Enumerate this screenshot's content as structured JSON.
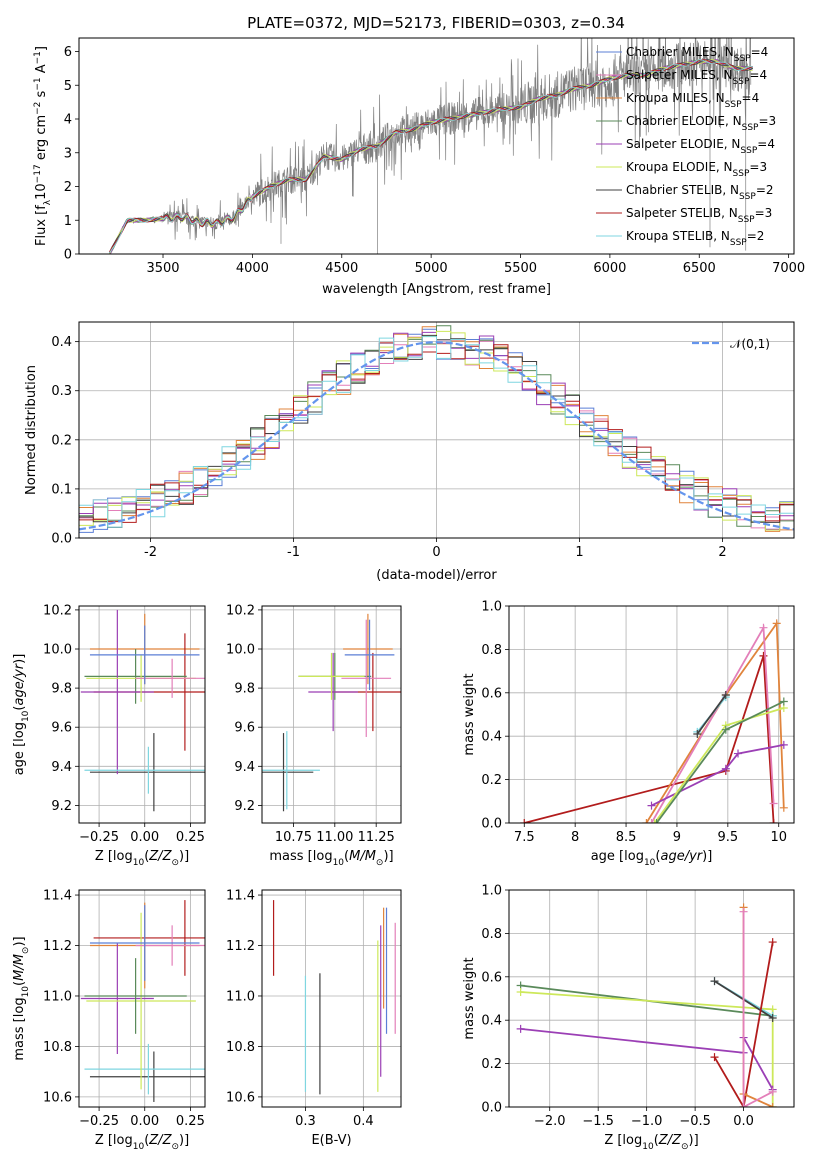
{
  "figure": {
    "title": "PLATE=0372, MJD=52173, FIBERID=0303, z=0.34"
  },
  "models": [
    {
      "name": "Chabrier MILES",
      "nssp": "4",
      "color": "#5b7fd6"
    },
    {
      "name": "Salpeter MILES",
      "nssp": "4",
      "color": "#e37fb9"
    },
    {
      "name": "Kroupa MILES",
      "nssp": "4",
      "color": "#e0843c"
    },
    {
      "name": "Chabrier ELODIE",
      "nssp": "3",
      "color": "#5a8a5a"
    },
    {
      "name": "Salpeter ELODIE",
      "nssp": "4",
      "color": "#9b3fb5"
    },
    {
      "name": "Kroupa ELODIE",
      "nssp": "3",
      "color": "#cde85a"
    },
    {
      "name": "Chabrier STELIB",
      "nssp": "2",
      "color": "#404040"
    },
    {
      "name": "Salpeter STELIB",
      "nssp": "3",
      "color": "#b21c1c"
    },
    {
      "name": "Kroupa STELIB",
      "nssp": "2",
      "color": "#7fd6e0"
    }
  ],
  "chart_data": [
    {
      "id": "spectrum",
      "type": "line",
      "xlabel": "wavelength [Angstrom, rest frame]",
      "ylabel": "Flux [f_λ 10^-17 erg cm^-2 s^-1 A^-1]",
      "xlim": [
        3030,
        7030
      ],
      "ylim": [
        0,
        6.4
      ],
      "xticks": [
        3500,
        4000,
        4500,
        5000,
        5500,
        6000,
        6500,
        7000
      ],
      "yticks": [
        0,
        1,
        2,
        3,
        4,
        5,
        6
      ],
      "data_color": "#808080",
      "model_x": [
        3200,
        3300,
        3400,
        3500,
        3600,
        3700,
        3800,
        3900,
        4000,
        4100,
        4200,
        4300,
        4400,
        4500,
        4600,
        4700,
        4800,
        4900,
        5000,
        5100,
        5200,
        5300,
        5400,
        5500,
        5600,
        5700,
        5800,
        5900,
        6000,
        6100,
        6200,
        6300,
        6400,
        6500,
        6600,
        6700,
        6800
      ],
      "model_y": [
        0.0,
        1.0,
        1.0,
        1.05,
        1.1,
        0.95,
        0.9,
        1.1,
        1.7,
        2.0,
        2.2,
        2.2,
        2.9,
        2.8,
        3.1,
        3.2,
        3.6,
        3.7,
        3.9,
        4.0,
        4.1,
        4.2,
        4.3,
        4.35,
        4.6,
        4.7,
        4.9,
        5.0,
        5.2,
        5.3,
        5.3,
        5.5,
        5.6,
        5.7,
        5.7,
        5.5,
        5.5
      ]
    },
    {
      "id": "residuals",
      "type": "histogram",
      "xlabel": "(data-model)/error",
      "ylabel": "Normed distribution",
      "xlim": [
        -2.5,
        2.5
      ],
      "ylim": [
        0,
        0.44
      ],
      "xticks": [
        -2,
        -1,
        0,
        1,
        2
      ],
      "yticks": [
        0.0,
        0.1,
        0.2,
        0.3,
        0.4
      ],
      "bins": 50,
      "reference_label": "𝒩(0,1)",
      "reference_color": "#6495ED"
    },
    {
      "id": "age-vs-Z",
      "type": "errorbar",
      "xlabel": "Z [log10(Z/Z☉)]",
      "ylabel": "age  [log10(age/yr)]",
      "xlim": [
        -0.36,
        0.33
      ],
      "ylim": [
        9.11,
        10.22
      ],
      "xticks": [
        -0.25,
        0.0,
        0.25
      ],
      "xticklabels": [
        "−0.25",
        "0.00",
        "0.25"
      ],
      "yticks": [
        9.2,
        9.4,
        9.6,
        9.8,
        10.0,
        10.2
      ],
      "points": [
        {
          "x": 0.0,
          "y": 10.0,
          "xerr": 0.3,
          "yerr": 0.18,
          "model": 2
        },
        {
          "x": 0.22,
          "y": 9.78,
          "xerr": 0.5,
          "yerr": 0.3,
          "model": 7
        },
        {
          "x": 0.05,
          "y": 9.37,
          "xerr": 0.35,
          "yerr": 0.2,
          "model": 6
        },
        {
          "x": -0.05,
          "y": 9.86,
          "xerr": 0.28,
          "yerr": 0.14,
          "model": 3
        },
        {
          "x": -0.15,
          "y": 9.78,
          "xerr": 0.2,
          "yerr": 0.42,
          "model": 4
        },
        {
          "x": -0.02,
          "y": 9.85,
          "xerr": 0.3,
          "yerr": 0.12,
          "model": 5
        },
        {
          "x": 0.02,
          "y": 9.38,
          "xerr": 0.35,
          "yerr": 0.12,
          "model": 8
        },
        {
          "x": 0.15,
          "y": 9.85,
          "xerr": 0.2,
          "yerr": 0.1,
          "model": 1
        },
        {
          "x": 0.0,
          "y": 9.97,
          "xerr": 0.3,
          "yerr": 0.15,
          "model": 0
        }
      ]
    },
    {
      "id": "age-vs-mass",
      "type": "errorbar",
      "xlabel": "mass [log10(M/M☉)]",
      "ylabel": "",
      "xlim": [
        10.56,
        11.4
      ],
      "ylim": [
        9.11,
        10.22
      ],
      "xticks": [
        10.75,
        11.0,
        11.25
      ],
      "xticklabels": [
        "10.75",
        "11.00",
        "11.25"
      ],
      "yticks": [
        9.2,
        9.4,
        9.6,
        9.8,
        10.0,
        10.2
      ],
      "points": [
        {
          "x": 11.2,
          "y": 10.0,
          "xerr": 0.15,
          "yerr": 0.18,
          "model": 2
        },
        {
          "x": 11.23,
          "y": 9.78,
          "xerr": 0.25,
          "yerr": 0.2,
          "model": 7
        },
        {
          "x": 10.69,
          "y": 9.37,
          "xerr": 0.18,
          "yerr": 0.2,
          "model": 6
        },
        {
          "x": 11.0,
          "y": 9.86,
          "xerr": 0.22,
          "yerr": 0.12,
          "model": 3
        },
        {
          "x": 10.99,
          "y": 9.78,
          "xerr": 0.15,
          "yerr": 0.2,
          "model": 4
        },
        {
          "x": 10.98,
          "y": 9.86,
          "xerr": 0.2,
          "yerr": 0.12,
          "model": 5
        },
        {
          "x": 10.71,
          "y": 9.38,
          "xerr": 0.2,
          "yerr": 0.2,
          "model": 8
        },
        {
          "x": 11.19,
          "y": 9.85,
          "xerr": 0.15,
          "yerr": 0.3,
          "model": 1
        },
        {
          "x": 11.21,
          "y": 9.97,
          "xerr": 0.15,
          "yerr": 0.18,
          "model": 0
        }
      ]
    },
    {
      "id": "massweight-vs-age",
      "type": "line",
      "xlabel": "age  [log10(age/yr)]",
      "ylabel": "mass weight",
      "xlim": [
        7.35,
        10.15
      ],
      "ylim": [
        0,
        1.0
      ],
      "xticks": [
        7.5,
        8.0,
        8.5,
        9.0,
        9.5,
        10.0
      ],
      "yticks": [
        0.0,
        0.2,
        0.4,
        0.6,
        0.8,
        1.0
      ],
      "series": [
        {
          "model": 7,
          "points": [
            [
              7.5,
              0.0
            ],
            [
              9.48,
              0.24
            ],
            [
              9.85,
              0.77
            ],
            [
              9.95,
              0.0
            ]
          ]
        },
        {
          "model": 2,
          "points": [
            [
              8.7,
              0.0
            ],
            [
              9.48,
              0.59
            ],
            [
              9.98,
              0.92
            ],
            [
              10.05,
              0.07
            ]
          ]
        },
        {
          "model": 1,
          "points": [
            [
              8.75,
              0.0
            ],
            [
              9.85,
              0.9
            ],
            [
              9.95,
              0.09
            ]
          ]
        },
        {
          "model": 4,
          "points": [
            [
              8.75,
              0.08
            ],
            [
              9.48,
              0.25
            ],
            [
              9.6,
              0.32
            ],
            [
              10.05,
              0.36
            ]
          ]
        },
        {
          "model": 5,
          "points": [
            [
              8.78,
              0.0
            ],
            [
              9.48,
              0.45
            ],
            [
              10.05,
              0.53
            ]
          ]
        },
        {
          "model": 3,
          "points": [
            [
              8.8,
              0.0
            ],
            [
              9.48,
              0.43
            ],
            [
              10.05,
              0.56
            ]
          ]
        },
        {
          "model": 8,
          "points": [
            [
              9.2,
              0.42
            ],
            [
              9.48,
              0.58
            ]
          ]
        },
        {
          "model": 6,
          "points": [
            [
              9.2,
              0.41
            ],
            [
              9.48,
              0.59
            ]
          ]
        }
      ]
    },
    {
      "id": "mass-vs-Z",
      "type": "errorbar",
      "xlabel": "Z [log10(Z/Z☉)]",
      "ylabel": "mass [log10(M/M☉)]",
      "xlim": [
        -0.36,
        0.33
      ],
      "ylim": [
        10.56,
        11.42
      ],
      "xticks": [
        -0.25,
        0.0,
        0.25
      ],
      "xticklabels": [
        "−0.25",
        "0.00",
        "0.25"
      ],
      "yticks": [
        10.6,
        10.8,
        11.0,
        11.2,
        11.4
      ],
      "points": [
        {
          "x": 0.22,
          "y": 11.23,
          "xerr": 0.5,
          "yerr": 0.15,
          "model": 7
        },
        {
          "x": 0.0,
          "y": 11.2,
          "xerr": 0.3,
          "yerr": 0.17,
          "model": 2
        },
        {
          "x": 0.05,
          "y": 10.68,
          "xerr": 0.35,
          "yerr": 0.1,
          "model": 6
        },
        {
          "x": 0.02,
          "y": 10.71,
          "xerr": 0.35,
          "yerr": 0.1,
          "model": 8
        },
        {
          "x": -0.15,
          "y": 10.99,
          "xerr": 0.2,
          "yerr": 0.22,
          "model": 4
        },
        {
          "x": -0.02,
          "y": 10.98,
          "xerr": 0.3,
          "yerr": 0.35,
          "model": 5
        },
        {
          "x": -0.05,
          "y": 11.0,
          "xerr": 0.28,
          "yerr": 0.15,
          "model": 3
        },
        {
          "x": 0.15,
          "y": 11.2,
          "xerr": 0.2,
          "yerr": 0.08,
          "model": 1
        },
        {
          "x": 0.0,
          "y": 11.21,
          "xerr": 0.3,
          "yerr": 0.15,
          "model": 0
        }
      ]
    },
    {
      "id": "mass-vs-ebv",
      "type": "errorbar",
      "xlabel": "E(B-V)",
      "ylabel": "",
      "xlim": [
        0.225,
        0.465
      ],
      "ylim": [
        10.56,
        11.42
      ],
      "xticks": [
        0.3,
        0.4
      ],
      "xticklabels": [
        "0.3",
        "0.4"
      ],
      "yticks": [
        10.6,
        10.8,
        11.0,
        11.2,
        11.4
      ],
      "points": [
        {
          "x": 0.245,
          "y": 11.23,
          "xerr": 0.0,
          "yerr": 0.15,
          "model": 7
        },
        {
          "x": 0.3,
          "y": 10.85,
          "xerr": 0.0,
          "yerr": 0.23,
          "model": 8
        },
        {
          "x": 0.325,
          "y": 10.85,
          "xerr": 0.0,
          "yerr": 0.24,
          "model": 6
        },
        {
          "x": 0.425,
          "y": 10.92,
          "xerr": 0.0,
          "yerr": 0.3,
          "model": 5
        },
        {
          "x": 0.43,
          "y": 10.98,
          "xerr": 0.0,
          "yerr": 0.3,
          "model": 4
        },
        {
          "x": 0.435,
          "y": 11.15,
          "xerr": 0.0,
          "yerr": 0.2,
          "model": 2
        },
        {
          "x": 0.44,
          "y": 11.1,
          "xerr": 0.0,
          "yerr": 0.25,
          "model": 0
        },
        {
          "x": 0.455,
          "y": 11.07,
          "xerr": 0.0,
          "yerr": 0.22,
          "model": 1
        }
      ]
    },
    {
      "id": "massweight-vs-Z",
      "type": "line",
      "xlabel": "Z [log10(Z/Z☉)]",
      "ylabel": "mass weight",
      "xlim": [
        -2.42,
        0.52
      ],
      "ylim": [
        0,
        1.0
      ],
      "xticks": [
        -2.0,
        -1.5,
        -1.0,
        -0.5,
        0.0
      ],
      "xticklabels": [
        "−2.0",
        "−1.5",
        "−1.0",
        "−0.5",
        "0.0"
      ],
      "yticks": [
        0.0,
        0.2,
        0.4,
        0.6,
        0.8,
        1.0
      ],
      "series": [
        {
          "model": 3,
          "points": [
            [
              -2.3,
              0.56
            ],
            [
              0.3,
              0.42
            ]
          ]
        },
        {
          "model": 5,
          "points": [
            [
              -2.3,
              0.53
            ],
            [
              0.3,
              0.45
            ],
            [
              0.3,
              0.0
            ]
          ]
        },
        {
          "model": 4,
          "points": [
            [
              -2.3,
              0.36
            ],
            [
              0.0,
              0.25
            ],
            [
              0.0,
              0.32
            ],
            [
              0.3,
              0.08
            ]
          ]
        },
        {
          "model": 8,
          "points": [
            [
              -0.3,
              0.58
            ],
            [
              0.3,
              0.42
            ]
          ]
        },
        {
          "model": 6,
          "points": [
            [
              -0.3,
              0.58
            ],
            [
              0.3,
              0.41
            ]
          ]
        },
        {
          "model": 7,
          "points": [
            [
              -0.3,
              0.23
            ],
            [
              0.0,
              0.0
            ],
            [
              0.3,
              0.76
            ]
          ]
        },
        {
          "model": 2,
          "points": [
            [
              0.0,
              0.92
            ],
            [
              0.0,
              0.06
            ],
            [
              0.3,
              0.0
            ]
          ]
        },
        {
          "model": 1,
          "points": [
            [
              0.0,
              0.9
            ],
            [
              0.0,
              0.0
            ],
            [
              0.3,
              0.07
            ]
          ]
        }
      ]
    }
  ]
}
